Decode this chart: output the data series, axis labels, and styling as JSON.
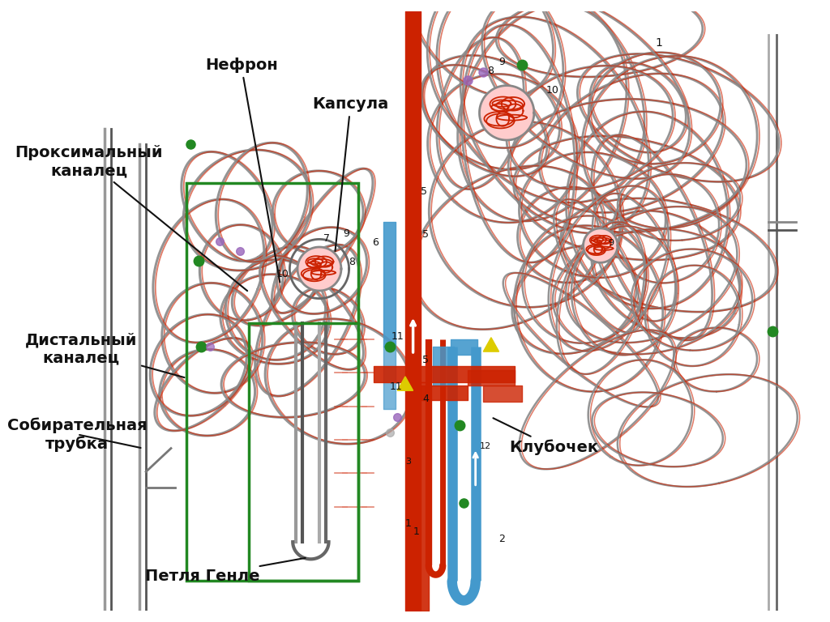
{
  "background_color": "#ffffff",
  "labels": {
    "nephron": "Нефрон",
    "capsule": "Капсула",
    "proximal": "Проксимальный\nканалец",
    "distal": "Дистальный\nканалец",
    "collecting": "Собирательная\nтрубка",
    "henle": "Петля Генле",
    "glomerulus": "Клубочек"
  },
  "red_color": "#cc2200",
  "blue_color": "#4499cc",
  "gray_color": "#888888",
  "green_color": "#228822",
  "dark_color": "#111111",
  "dot_green": "#228822",
  "dot_purple": "#9966bb",
  "dot_gray": "#aaaaaa",
  "triangle_yellow": "#ddcc00"
}
